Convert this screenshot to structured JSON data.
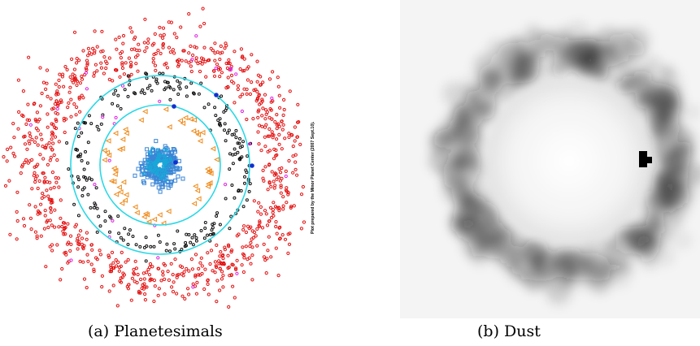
{
  "figure": {
    "panels": [
      {
        "id": "a",
        "caption": "(a) Planetesimals",
        "credit": "Plot prepared by the Minor Planet Center (2007 Sept.10).",
        "colors": {
          "scattered": "#e41010",
          "outer": "#111111",
          "inner": "#3a86d6",
          "cyan": "#18a8d8",
          "triangles": "#f08a1a",
          "magenta": "#e020e0",
          "orbits": "#2ad8e6",
          "planet": "#1030d0"
        }
      },
      {
        "id": "b",
        "caption": "(b) Dust",
        "colors": {
          "background": "#f4f4f4",
          "ring": "#1a1a1a",
          "marker": "#000000"
        }
      }
    ]
  }
}
